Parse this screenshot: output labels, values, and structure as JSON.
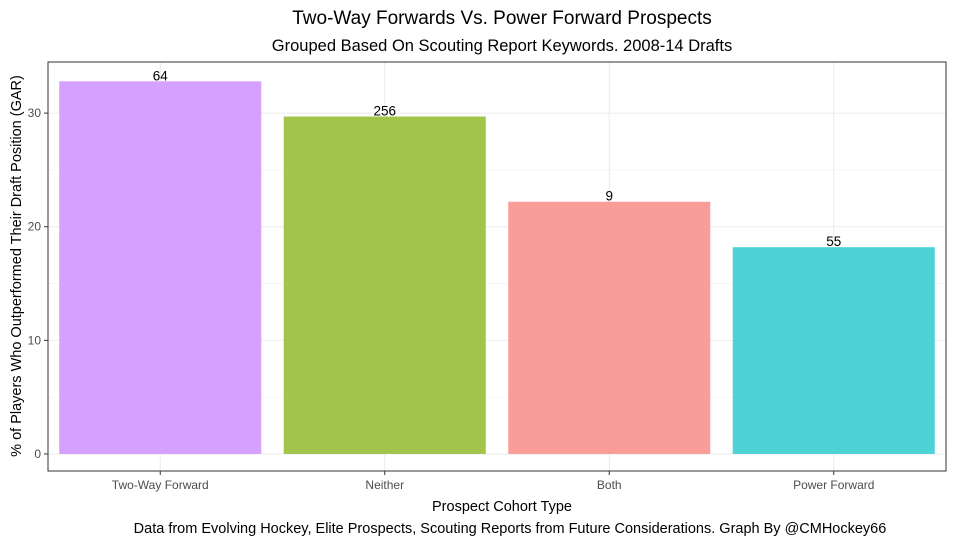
{
  "chart_data": {
    "type": "bar",
    "title": "Two-Way Forwards Vs. Power Forward Prospects",
    "subtitle": "Grouped Based On Scouting Report Keywords. 2008-14 Drafts",
    "xlabel": "Prospect Cohort Type",
    "ylabel": "% of Players Who Outperformed Their Draft Position (GAR)",
    "caption": "Data from Evolving Hockey, Elite Prospects, Scouting Reports from Future Considerations. Graph By @CMHockey66",
    "categories": [
      "Two-Way Forward",
      "Neither",
      "Both",
      "Power Forward"
    ],
    "values": [
      32.8,
      29.7,
      22.2,
      18.2
    ],
    "bar_labels": [
      "64",
      "256",
      "9",
      "55"
    ],
    "colors": [
      "#d6a0ff",
      "#a3c44b",
      "#f99d98",
      "#4dd2d6"
    ],
    "ylim": [
      -1.5,
      34.5
    ],
    "yticks": [
      0,
      10,
      20,
      30
    ],
    "grid": true,
    "legend": "none"
  }
}
